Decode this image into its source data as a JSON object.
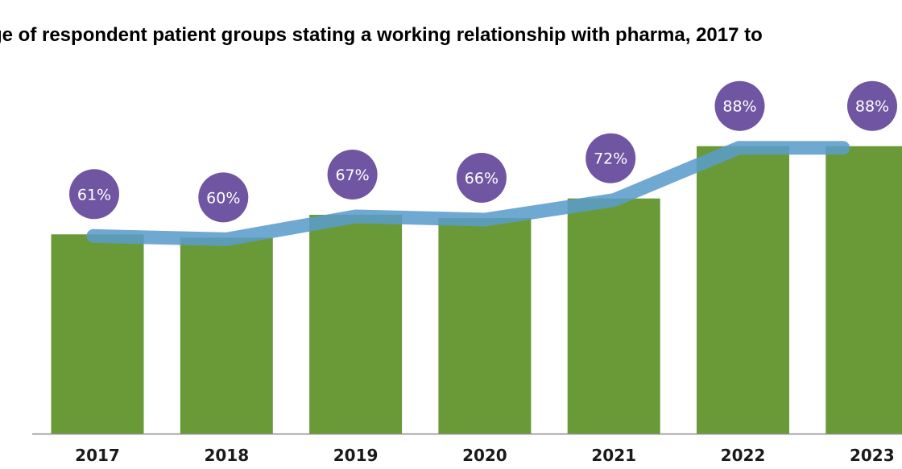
{
  "chart_data": {
    "type": "bar",
    "title": "ge of respondent patient groups stating a working relationship with pharma, 2017 to",
    "xlabel": "",
    "ylabel": "",
    "categories": [
      "2017",
      "2018",
      "2019",
      "2020",
      "2021",
      "2022",
      "2023"
    ],
    "series": [
      {
        "values": [
          61,
          60,
          67,
          66,
          72,
          88,
          88
        ],
        "labels": [
          "61%",
          "60%",
          "67%",
          "66%",
          "72%",
          "88%",
          "88%"
        ]
      }
    ],
    "trend_line": true,
    "ylim": [
      0,
      100
    ],
    "grid": false,
    "legend": "none",
    "colors": {
      "bar": "#6a9a37",
      "trend_line": "#5b9cc9",
      "label_bubble": "#7055a2",
      "label_text": "#ffffff",
      "axis": "#888888"
    }
  }
}
